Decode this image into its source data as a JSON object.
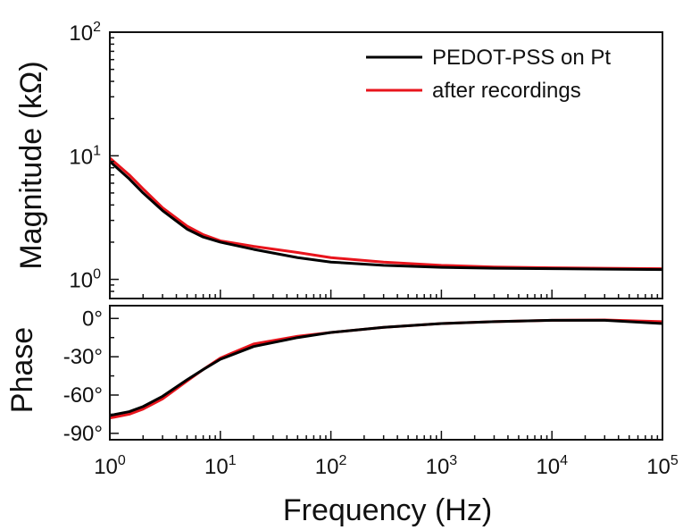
{
  "chart_data": [
    {
      "type": "line",
      "panel": "top",
      "xscale": "log",
      "yscale": "log",
      "xlim": [
        1,
        100000
      ],
      "ylim": [
        0.7,
        100
      ],
      "ylabel": "Magnitude (kΩ)",
      "xlabel": "",
      "y_ticks": [
        {
          "value": 1,
          "base": "10",
          "exp": "0"
        },
        {
          "value": 10,
          "base": "10",
          "exp": "1"
        },
        {
          "value": 100,
          "base": "10",
          "exp": "2"
        }
      ],
      "legend": {
        "position": "top-right"
      },
      "series": [
        {
          "name": "PEDOT-PSS on Pt",
          "color": "#000000",
          "x": [
            1,
            1.5,
            2,
            3,
            5,
            7,
            10,
            20,
            50,
            100,
            300,
            1000,
            3000,
            10000,
            30000,
            100000
          ],
          "y": [
            9.0,
            6.5,
            5.0,
            3.6,
            2.55,
            2.2,
            2.0,
            1.75,
            1.5,
            1.38,
            1.3,
            1.25,
            1.23,
            1.22,
            1.21,
            1.2
          ]
        },
        {
          "name": "after recordings",
          "color": "#e8141c",
          "x": [
            1,
            1.5,
            2,
            3,
            5,
            7,
            10,
            20,
            50,
            100,
            300,
            1000,
            3000,
            10000,
            30000,
            100000
          ],
          "y": [
            9.6,
            7.0,
            5.4,
            3.8,
            2.7,
            2.3,
            2.05,
            1.85,
            1.65,
            1.5,
            1.38,
            1.3,
            1.26,
            1.24,
            1.23,
            1.22
          ]
        }
      ]
    },
    {
      "type": "line",
      "panel": "bottom",
      "xscale": "log",
      "yscale": "linear",
      "xlim": [
        1,
        100000
      ],
      "ylim": [
        -95,
        10
      ],
      "ylabel": "Phase",
      "xlabel": "Frequency (Hz)",
      "y_ticks": [
        {
          "value": 0,
          "label": "0°"
        },
        {
          "value": -30,
          "label": "-30°"
        },
        {
          "value": -60,
          "label": "-60°"
        },
        {
          "value": -90,
          "label": "-90°"
        }
      ],
      "x_ticks": [
        {
          "value": 1,
          "base": "10",
          "exp": "0"
        },
        {
          "value": 10,
          "base": "10",
          "exp": "1"
        },
        {
          "value": 100,
          "base": "10",
          "exp": "2"
        },
        {
          "value": 1000,
          "base": "10",
          "exp": "3"
        },
        {
          "value": 10000,
          "base": "10",
          "exp": "4"
        },
        {
          "value": 100000,
          "base": "10",
          "exp": "5"
        }
      ],
      "series": [
        {
          "name": "PEDOT-PSS on Pt",
          "color": "#000000",
          "x": [
            1,
            1.5,
            2,
            3,
            5,
            7,
            10,
            20,
            50,
            100,
            300,
            1000,
            3000,
            10000,
            30000,
            100000
          ],
          "y": [
            -76,
            -73,
            -69,
            -61,
            -48,
            -40,
            -32,
            -22,
            -15,
            -11,
            -7,
            -4,
            -2.5,
            -1.5,
            -1.5,
            -4
          ]
        },
        {
          "name": "after recordings",
          "color": "#e8141c",
          "x": [
            1,
            1.5,
            2,
            3,
            5,
            7,
            10,
            20,
            50,
            100,
            300,
            1000,
            3000,
            10000,
            30000,
            100000
          ],
          "y": [
            -78,
            -75,
            -71,
            -63,
            -49,
            -40,
            -31,
            -20,
            -14,
            -11,
            -7,
            -4,
            -2.5,
            -1.5,
            -1.2,
            -2.5
          ]
        }
      ]
    }
  ]
}
